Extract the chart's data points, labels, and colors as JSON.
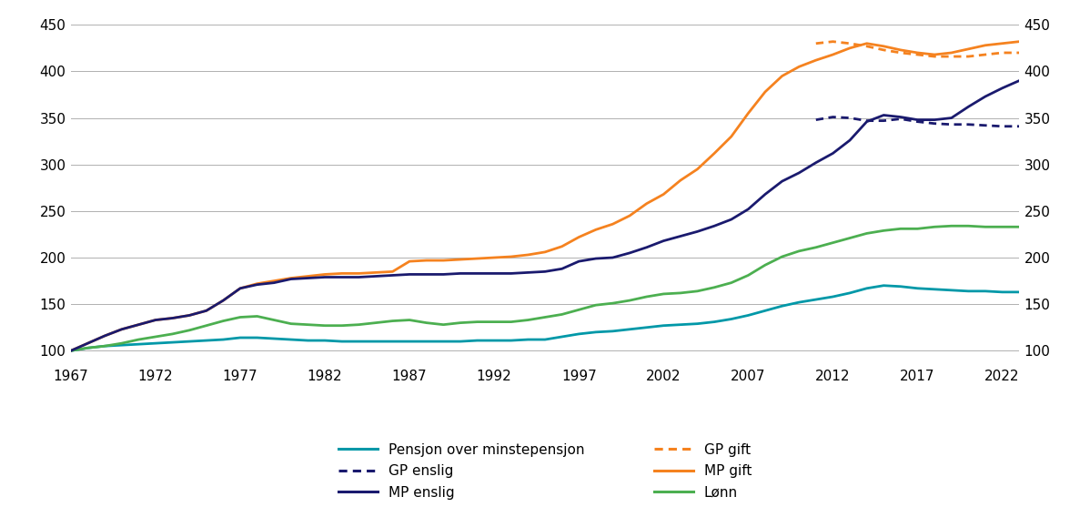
{
  "years": [
    1967,
    1968,
    1969,
    1970,
    1971,
    1972,
    1973,
    1974,
    1975,
    1976,
    1977,
    1978,
    1979,
    1980,
    1981,
    1982,
    1983,
    1984,
    1985,
    1986,
    1987,
    1988,
    1989,
    1990,
    1991,
    1992,
    1993,
    1994,
    1995,
    1996,
    1997,
    1998,
    1999,
    2000,
    2001,
    2002,
    2003,
    2004,
    2005,
    2006,
    2007,
    2008,
    2009,
    2010,
    2011,
    2012,
    2013,
    2014,
    2015,
    2016,
    2017,
    2018,
    2019,
    2020,
    2021,
    2022,
    2023
  ],
  "pensjon_over_minstepensjon": [
    100,
    103,
    105,
    106,
    107,
    108,
    109,
    110,
    111,
    112,
    114,
    114,
    113,
    112,
    111,
    111,
    110,
    110,
    110,
    110,
    110,
    110,
    110,
    110,
    111,
    111,
    111,
    112,
    112,
    115,
    118,
    120,
    121,
    123,
    125,
    127,
    128,
    129,
    131,
    134,
    138,
    143,
    148,
    152,
    155,
    158,
    162,
    167,
    170,
    169,
    167,
    166,
    165,
    164,
    164,
    163,
    163
  ],
  "mp_enslig": [
    100,
    108,
    116,
    123,
    128,
    133,
    135,
    138,
    143,
    154,
    167,
    171,
    173,
    177,
    178,
    179,
    179,
    179,
    180,
    181,
    182,
    182,
    182,
    183,
    183,
    183,
    183,
    184,
    185,
    188,
    196,
    199,
    200,
    205,
    211,
    218,
    223,
    228,
    234,
    241,
    252,
    268,
    282,
    291,
    302,
    312,
    326,
    346,
    353,
    351,
    348,
    348,
    350,
    362,
    373,
    382,
    390
  ],
  "mp_gift": [
    100,
    108,
    116,
    123,
    128,
    133,
    135,
    138,
    143,
    154,
    167,
    172,
    175,
    178,
    180,
    182,
    183,
    183,
    184,
    185,
    196,
    197,
    197,
    198,
    199,
    200,
    201,
    203,
    206,
    212,
    222,
    230,
    236,
    245,
    258,
    268,
    283,
    295,
    312,
    330,
    355,
    378,
    395,
    405,
    412,
    418,
    425,
    430,
    427,
    423,
    420,
    418,
    420,
    424,
    428,
    430,
    432
  ],
  "lonn": [
    100,
    103,
    105,
    108,
    112,
    115,
    118,
    122,
    127,
    132,
    136,
    137,
    133,
    129,
    128,
    127,
    127,
    128,
    130,
    132,
    133,
    130,
    128,
    130,
    131,
    131,
    131,
    133,
    136,
    139,
    144,
    149,
    151,
    154,
    158,
    161,
    162,
    164,
    168,
    173,
    181,
    192,
    201,
    207,
    211,
    216,
    221,
    226,
    229,
    231,
    231,
    233,
    234,
    234,
    233,
    233,
    233
  ],
  "gp_enslig_years": [
    2011,
    2012,
    2013,
    2014,
    2015,
    2016,
    2017,
    2018,
    2019,
    2020,
    2021,
    2022,
    2023
  ],
  "gp_enslig": [
    348,
    351,
    350,
    347,
    347,
    349,
    346,
    344,
    343,
    343,
    342,
    341,
    341
  ],
  "gp_gift_years": [
    2011,
    2012,
    2013,
    2014,
    2015,
    2016,
    2017,
    2018,
    2019,
    2020,
    2021,
    2022,
    2023
  ],
  "gp_gift": [
    430,
    432,
    430,
    427,
    423,
    420,
    418,
    416,
    416,
    416,
    418,
    420,
    420
  ],
  "colors": {
    "pensjon_over_minstepensjon": "#0098a8",
    "mp_enslig": "#1a1a6e",
    "mp_gift": "#f5821f",
    "lonn": "#4caf50",
    "gp_enslig": "#1a1a6e",
    "gp_gift": "#f5821f"
  },
  "ylim": [
    88,
    460
  ],
  "yticks": [
    100,
    150,
    200,
    250,
    300,
    350,
    400,
    450
  ],
  "xticks": [
    1967,
    1972,
    1977,
    1982,
    1987,
    1992,
    1997,
    2002,
    2007,
    2012,
    2017,
    2022
  ],
  "background_color": "#ffffff",
  "grid_color": "#b0b0b0",
  "linewidth": 2.0
}
